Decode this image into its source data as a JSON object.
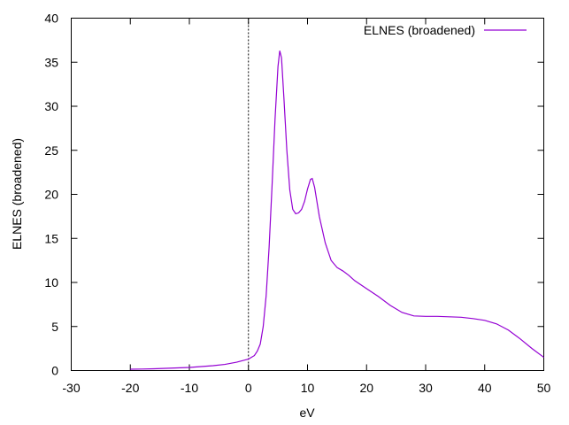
{
  "chart_data": {
    "type": "line",
    "title": "",
    "xlabel": "eV",
    "ylabel": "ELNES (broadened)",
    "xlim": [
      -30,
      50
    ],
    "ylim": [
      0,
      40
    ],
    "x_ticks": [
      -30,
      -20,
      -10,
      0,
      10,
      20,
      30,
      40,
      50
    ],
    "y_ticks": [
      0,
      5,
      10,
      15,
      20,
      25,
      30,
      35,
      40
    ],
    "x_tick_labels": [
      "-30",
      "-20",
      "-10",
      "0",
      "10",
      "20",
      "30",
      "40",
      "50"
    ],
    "y_tick_labels": [
      "0",
      "5",
      "10",
      "15",
      "20",
      "25",
      "30",
      "35",
      "40"
    ],
    "grid": false,
    "legend_position": "top-right",
    "vertical_reference_line": {
      "x": 0,
      "style": "dotted",
      "color": "#000000"
    },
    "series": [
      {
        "name": "ELNES (broadened)",
        "color": "#9400d3",
        "points": [
          [
            -20,
            0.15
          ],
          [
            -18,
            0.17
          ],
          [
            -16,
            0.2
          ],
          [
            -14,
            0.25
          ],
          [
            -12,
            0.3
          ],
          [
            -10,
            0.35
          ],
          [
            -8,
            0.45
          ],
          [
            -6,
            0.55
          ],
          [
            -4,
            0.7
          ],
          [
            -2,
            0.95
          ],
          [
            0,
            1.3
          ],
          [
            1,
            1.7
          ],
          [
            1.5,
            2.2
          ],
          [
            2,
            3.0
          ],
          [
            2.5,
            5.0
          ],
          [
            3,
            8.5
          ],
          [
            3.5,
            14.0
          ],
          [
            4,
            21.0
          ],
          [
            4.5,
            28.5
          ],
          [
            5,
            34.5
          ],
          [
            5.3,
            36.3
          ],
          [
            5.6,
            35.5
          ],
          [
            6,
            31.0
          ],
          [
            6.5,
            25.0
          ],
          [
            7,
            20.5
          ],
          [
            7.5,
            18.3
          ],
          [
            8,
            17.8
          ],
          [
            8.5,
            17.9
          ],
          [
            9,
            18.3
          ],
          [
            9.5,
            19.2
          ],
          [
            10,
            20.6
          ],
          [
            10.5,
            21.7
          ],
          [
            10.8,
            21.8
          ],
          [
            11.2,
            20.8
          ],
          [
            12,
            17.5
          ],
          [
            13,
            14.5
          ],
          [
            14,
            12.5
          ],
          [
            15,
            11.7
          ],
          [
            16,
            11.3
          ],
          [
            17,
            10.8
          ],
          [
            18,
            10.2
          ],
          [
            20,
            9.3
          ],
          [
            22,
            8.4
          ],
          [
            24,
            7.4
          ],
          [
            26,
            6.6
          ],
          [
            28,
            6.2
          ],
          [
            30,
            6.15
          ],
          [
            32,
            6.15
          ],
          [
            34,
            6.1
          ],
          [
            36,
            6.05
          ],
          [
            38,
            5.9
          ],
          [
            40,
            5.7
          ],
          [
            42,
            5.3
          ],
          [
            44,
            4.6
          ],
          [
            46,
            3.6
          ],
          [
            48,
            2.5
          ],
          [
            50,
            1.5
          ]
        ]
      }
    ]
  }
}
